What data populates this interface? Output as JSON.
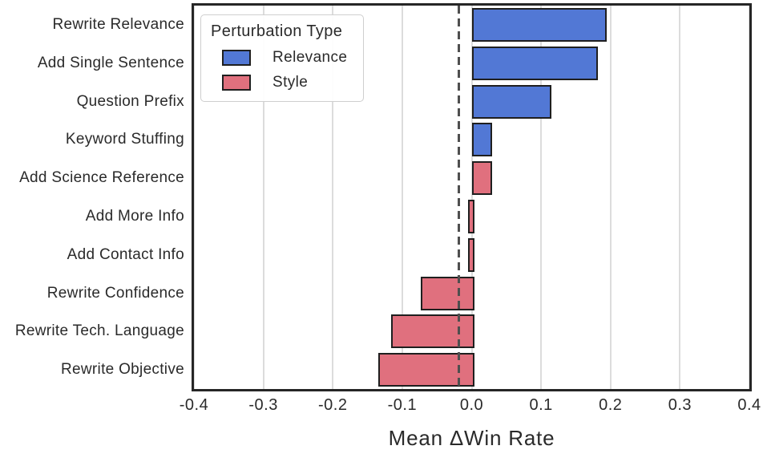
{
  "chart_data": {
    "type": "bar",
    "orientation": "horizontal",
    "title": "",
    "xlabel": "Mean ΔWin Rate",
    "ylabel": "",
    "xlim": [
      -0.4,
      0.4
    ],
    "xticks": [
      -0.4,
      -0.3,
      -0.2,
      -0.1,
      0.0,
      0.1,
      0.2,
      0.3,
      0.4
    ],
    "xtick_labels": [
      "-0.4",
      "-0.3",
      "-0.2",
      "-0.1",
      "0.0",
      "0.1",
      "0.2",
      "0.3",
      "0.4"
    ],
    "grid": "vertical",
    "legend_position": "upper-left",
    "categories": [
      "Rewrite Relevance",
      "Add Single Sentence",
      "Question Prefix",
      "Keyword Stuffing",
      "Add Science Reference",
      "Add More Info",
      "Add Contact Info",
      "Rewrite Confidence",
      "Rewrite Tech. Language",
      "Rewrite Objective"
    ],
    "values": [
      0.19,
      0.177,
      0.11,
      0.025,
      0.025,
      -0.005,
      -0.005,
      -0.073,
      -0.116,
      -0.135
    ],
    "groups": [
      "Relevance",
      "Relevance",
      "Relevance",
      "Relevance",
      "Style",
      "Style",
      "Style",
      "Style",
      "Style",
      "Style"
    ],
    "reference_line": {
      "x": -0.018,
      "style": "dashed"
    },
    "legend": {
      "title": "Perturbation Type",
      "entries": [
        {
          "label": "Relevance",
          "color": "#5278d5"
        },
        {
          "label": "Style",
          "color": "#e0707e"
        }
      ]
    },
    "colors": {
      "relevance_fill": "#5278d5",
      "style_fill": "#e0707e",
      "bar_edge": "#1f1f1f",
      "gridline": "#dcdcdc",
      "spine": "#262626",
      "reference_line": "#4f4f4f",
      "text": "#2a2a2a"
    }
  }
}
